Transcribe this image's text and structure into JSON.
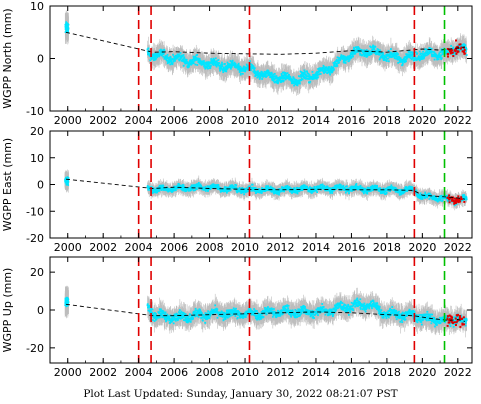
{
  "chart_data": [
    {
      "type": "scatter",
      "ylabel": "WGPP North (mm)",
      "xlim": [
        1999.0,
        2022.8
      ],
      "ylim": [
        -10,
        10
      ],
      "yticks": [
        -10,
        0,
        10
      ],
      "xticks": [
        2000,
        2002,
        2004,
        2006,
        2008,
        2010,
        2012,
        2014,
        2016,
        2018,
        2020,
        2022
      ],
      "red_dashed_lines": [
        2004.0,
        2004.7,
        2010.25,
        2019.55
      ],
      "green_dashed_lines": [
        2021.25
      ],
      "series": [
        {
          "x": [
            1999.5,
            2000.0,
            2000.2,
            2004.5,
            2004.8,
            2006.0,
            2007.0,
            2008.0,
            2009.0,
            2010.2,
            2011.0,
            2012.0,
            2013.0,
            2014.0,
            2015.0,
            2016.0,
            2017.0,
            2018.0,
            2019.0,
            2019.6,
            2020.5,
            2021.3,
            2022.0,
            2022.3
          ],
          "y": [
            5.0,
            6.0,
            5.0,
            1.0,
            0.8,
            0.0,
            -0.5,
            -1.0,
            -1.5,
            -2.0,
            -3.0,
            -3.8,
            -4.0,
            -3.0,
            -1.5,
            1.0,
            1.5,
            0.5,
            0.0,
            0.5,
            1.0,
            0.8,
            2.0,
            1.5
          ]
        },
        {
          "x": [
            1999.9,
            2004.8,
            2006.0,
            2008.0,
            2010.0,
            2012.0,
            2014.0,
            2016.0,
            2018.0,
            2019.0,
            2020.0,
            2021.0,
            2022.0,
            2022.4
          ],
          "y": [
            5.0,
            1.2,
            1.3,
            1.0,
            0.9,
            0.8,
            1.0,
            1.5,
            1.2,
            1.5,
            1.8,
            1.6,
            2.0,
            2.2
          ]
        }
      ]
    },
    {
      "type": "scatter",
      "ylabel": "WGPP East (mm)",
      "xlim": [
        1999.0,
        2022.8
      ],
      "ylim": [
        -20,
        20
      ],
      "yticks": [
        -20,
        -10,
        0,
        10,
        20
      ],
      "xticks": [
        2000,
        2002,
        2004,
        2006,
        2008,
        2010,
        2012,
        2014,
        2016,
        2018,
        2020,
        2022
      ],
      "red_dashed_lines": [
        2004.0,
        2004.7,
        2010.25,
        2019.55
      ],
      "green_dashed_lines": [
        2021.25
      ],
      "series": [
        {
          "x": [
            1999.5,
            2000.0,
            2000.2,
            2004.5,
            2005.0,
            2006.0,
            2008.0,
            2010.0,
            2012.0,
            2014.0,
            2016.0,
            2018.0,
            2019.5,
            2020.0,
            2021.0,
            2022.0,
            2022.3
          ],
          "y": [
            2.0,
            1.0,
            3.0,
            -1.0,
            -2.0,
            -1.5,
            -1.0,
            -2.0,
            -2.0,
            -1.5,
            -1.5,
            -2.0,
            -2.0,
            -4.5,
            -5.0,
            -6.0,
            -5.5
          ]
        },
        {
          "x": [
            1999.9,
            2004.8,
            2006.0,
            2008.0,
            2010.0,
            2012.0,
            2014.0,
            2016.0,
            2018.0,
            2019.5,
            2020.0,
            2021.0,
            2022.0,
            2022.4
          ],
          "y": [
            2.0,
            -1.5,
            -1.0,
            -1.5,
            -1.8,
            -2.0,
            -1.8,
            -2.0,
            -2.0,
            -2.2,
            -4.0,
            -4.5,
            -5.0,
            -5.5
          ]
        }
      ]
    },
    {
      "type": "scatter",
      "ylabel": "WGPP Up (mm)",
      "xlim": [
        1999.0,
        2022.8
      ],
      "ylim": [
        -28,
        28
      ],
      "yticks": [
        -20,
        0,
        20
      ],
      "xticks": [
        2000,
        2002,
        2004,
        2006,
        2008,
        2010,
        2012,
        2014,
        2016,
        2018,
        2020,
        2022
      ],
      "xticklabels": [
        "2000",
        "2002",
        "2004",
        "2006",
        "2008",
        "2010",
        "2012",
        "2014",
        "2016",
        "2018",
        "2020",
        "2022"
      ],
      "red_dashed_lines": [
        2004.0,
        2004.7,
        2010.25,
        2019.55
      ],
      "green_dashed_lines": [
        2021.25
      ],
      "series": [
        {
          "x": [
            1999.5,
            2000.0,
            2000.2,
            2004.5,
            2005.0,
            2006.0,
            2008.0,
            2010.0,
            2012.0,
            2014.0,
            2016.0,
            2017.0,
            2018.0,
            2019.5,
            2020.5,
            2021.5,
            2022.0,
            2022.3
          ],
          "y": [
            3.0,
            5.0,
            2.0,
            2.0,
            -3.0,
            -4.0,
            -2.0,
            -2.0,
            -1.0,
            -1.0,
            2.0,
            3.0,
            -2.0,
            -3.0,
            -5.0,
            -6.0,
            -4.0,
            -7.0
          ]
        },
        {
          "x": [
            1999.9,
            2004.8,
            2006.0,
            2008.0,
            2010.0,
            2012.0,
            2014.0,
            2016.0,
            2018.0,
            2019.5,
            2020.5,
            2021.5,
            2022.0,
            2022.4
          ],
          "y": [
            3.0,
            -3.0,
            -3.0,
            -2.5,
            -2.0,
            -1.5,
            -1.0,
            -1.5,
            -2.5,
            -3.0,
            -4.5,
            -5.5,
            -5.0,
            -6.0
          ]
        }
      ]
    }
  ],
  "colors": {
    "points": "#00e5ff",
    "error_bars": "#bdbdbd",
    "offsets_red": "#e00000",
    "green_line": "#00c000",
    "model_line": "#000000"
  },
  "footer": {
    "text": "Plot Last Updated:   Sunday, January 30, 2022 08:21:07 PST"
  }
}
